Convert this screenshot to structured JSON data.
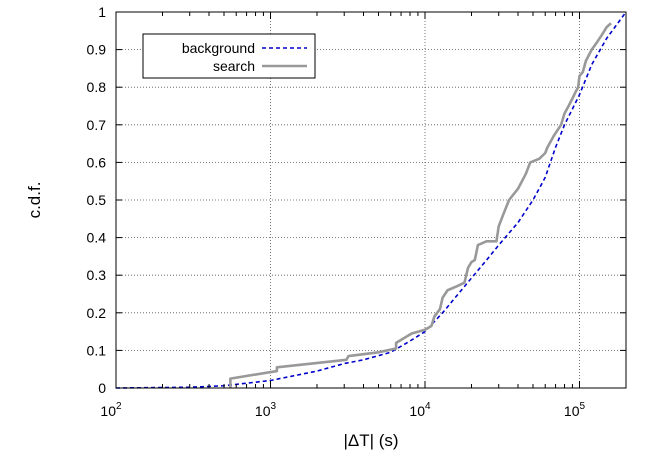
{
  "chart_data": {
    "type": "line",
    "title": "",
    "xlabel": "|ΔT| (s)",
    "ylabel": "c.d.f.",
    "x_scale": "log",
    "xlim": [
      100,
      200000
    ],
    "ylim": [
      0,
      1
    ],
    "x_ticks": [
      {
        "value": 100,
        "base": "10",
        "exp": "2"
      },
      {
        "value": 1000,
        "base": "10",
        "exp": "3"
      },
      {
        "value": 10000,
        "base": "10",
        "exp": "4"
      },
      {
        "value": 100000,
        "base": "10",
        "exp": "5"
      }
    ],
    "y_ticks": [
      "0",
      "0.1",
      "0.2",
      "0.3",
      "0.4",
      "0.5",
      "0.6",
      "0.7",
      "0.8",
      "0.9",
      "1"
    ],
    "grid": true,
    "legend_position": "top-left",
    "series": [
      {
        "name": "background",
        "style": "dashed",
        "color": "#0000cc",
        "points": [
          [
            100,
            0
          ],
          [
            300,
            0.002
          ],
          [
            500,
            0.006
          ],
          [
            1000,
            0.02
          ],
          [
            2000,
            0.045
          ],
          [
            3000,
            0.065
          ],
          [
            4000,
            0.075
          ],
          [
            6000,
            0.095
          ],
          [
            8000,
            0.125
          ],
          [
            10000,
            0.15
          ],
          [
            13000,
            0.2
          ],
          [
            18000,
            0.27
          ],
          [
            25000,
            0.34
          ],
          [
            30000,
            0.38
          ],
          [
            40000,
            0.44
          ],
          [
            50000,
            0.5
          ],
          [
            60000,
            0.56
          ],
          [
            70000,
            0.64
          ],
          [
            80000,
            0.7
          ],
          [
            100000,
            0.78
          ],
          [
            120000,
            0.86
          ],
          [
            150000,
            0.93
          ],
          [
            200000,
            1.0
          ]
        ]
      },
      {
        "name": "search",
        "style": "solid",
        "color": "#999999",
        "points": [
          [
            550,
            0
          ],
          [
            550,
            0.025
          ],
          [
            1100,
            0.045
          ],
          [
            1100,
            0.055
          ],
          [
            3100,
            0.075
          ],
          [
            3200,
            0.085
          ],
          [
            5000,
            0.095
          ],
          [
            6500,
            0.105
          ],
          [
            6500,
            0.12
          ],
          [
            8200,
            0.145
          ],
          [
            10000,
            0.155
          ],
          [
            11000,
            0.165
          ],
          [
            11500,
            0.19
          ],
          [
            12500,
            0.21
          ],
          [
            13000,
            0.24
          ],
          [
            14000,
            0.26
          ],
          [
            16000,
            0.27
          ],
          [
            18000,
            0.28
          ],
          [
            19000,
            0.32
          ],
          [
            20000,
            0.335
          ],
          [
            21000,
            0.34
          ],
          [
            22000,
            0.38
          ],
          [
            25000,
            0.39
          ],
          [
            29000,
            0.39
          ],
          [
            30000,
            0.43
          ],
          [
            32000,
            0.46
          ],
          [
            35000,
            0.5
          ],
          [
            40000,
            0.53
          ],
          [
            45000,
            0.57
          ],
          [
            48000,
            0.6
          ],
          [
            55000,
            0.61
          ],
          [
            60000,
            0.625
          ],
          [
            62000,
            0.64
          ],
          [
            68000,
            0.67
          ],
          [
            76000,
            0.7
          ],
          [
            80000,
            0.73
          ],
          [
            85000,
            0.75
          ],
          [
            90000,
            0.77
          ],
          [
            95000,
            0.79
          ],
          [
            98000,
            0.8
          ],
          [
            100000,
            0.83
          ],
          [
            105000,
            0.84
          ],
          [
            110000,
            0.87
          ],
          [
            120000,
            0.9
          ],
          [
            130000,
            0.92
          ],
          [
            140000,
            0.94
          ],
          [
            150000,
            0.96
          ],
          [
            160000,
            0.97
          ]
        ]
      }
    ]
  }
}
